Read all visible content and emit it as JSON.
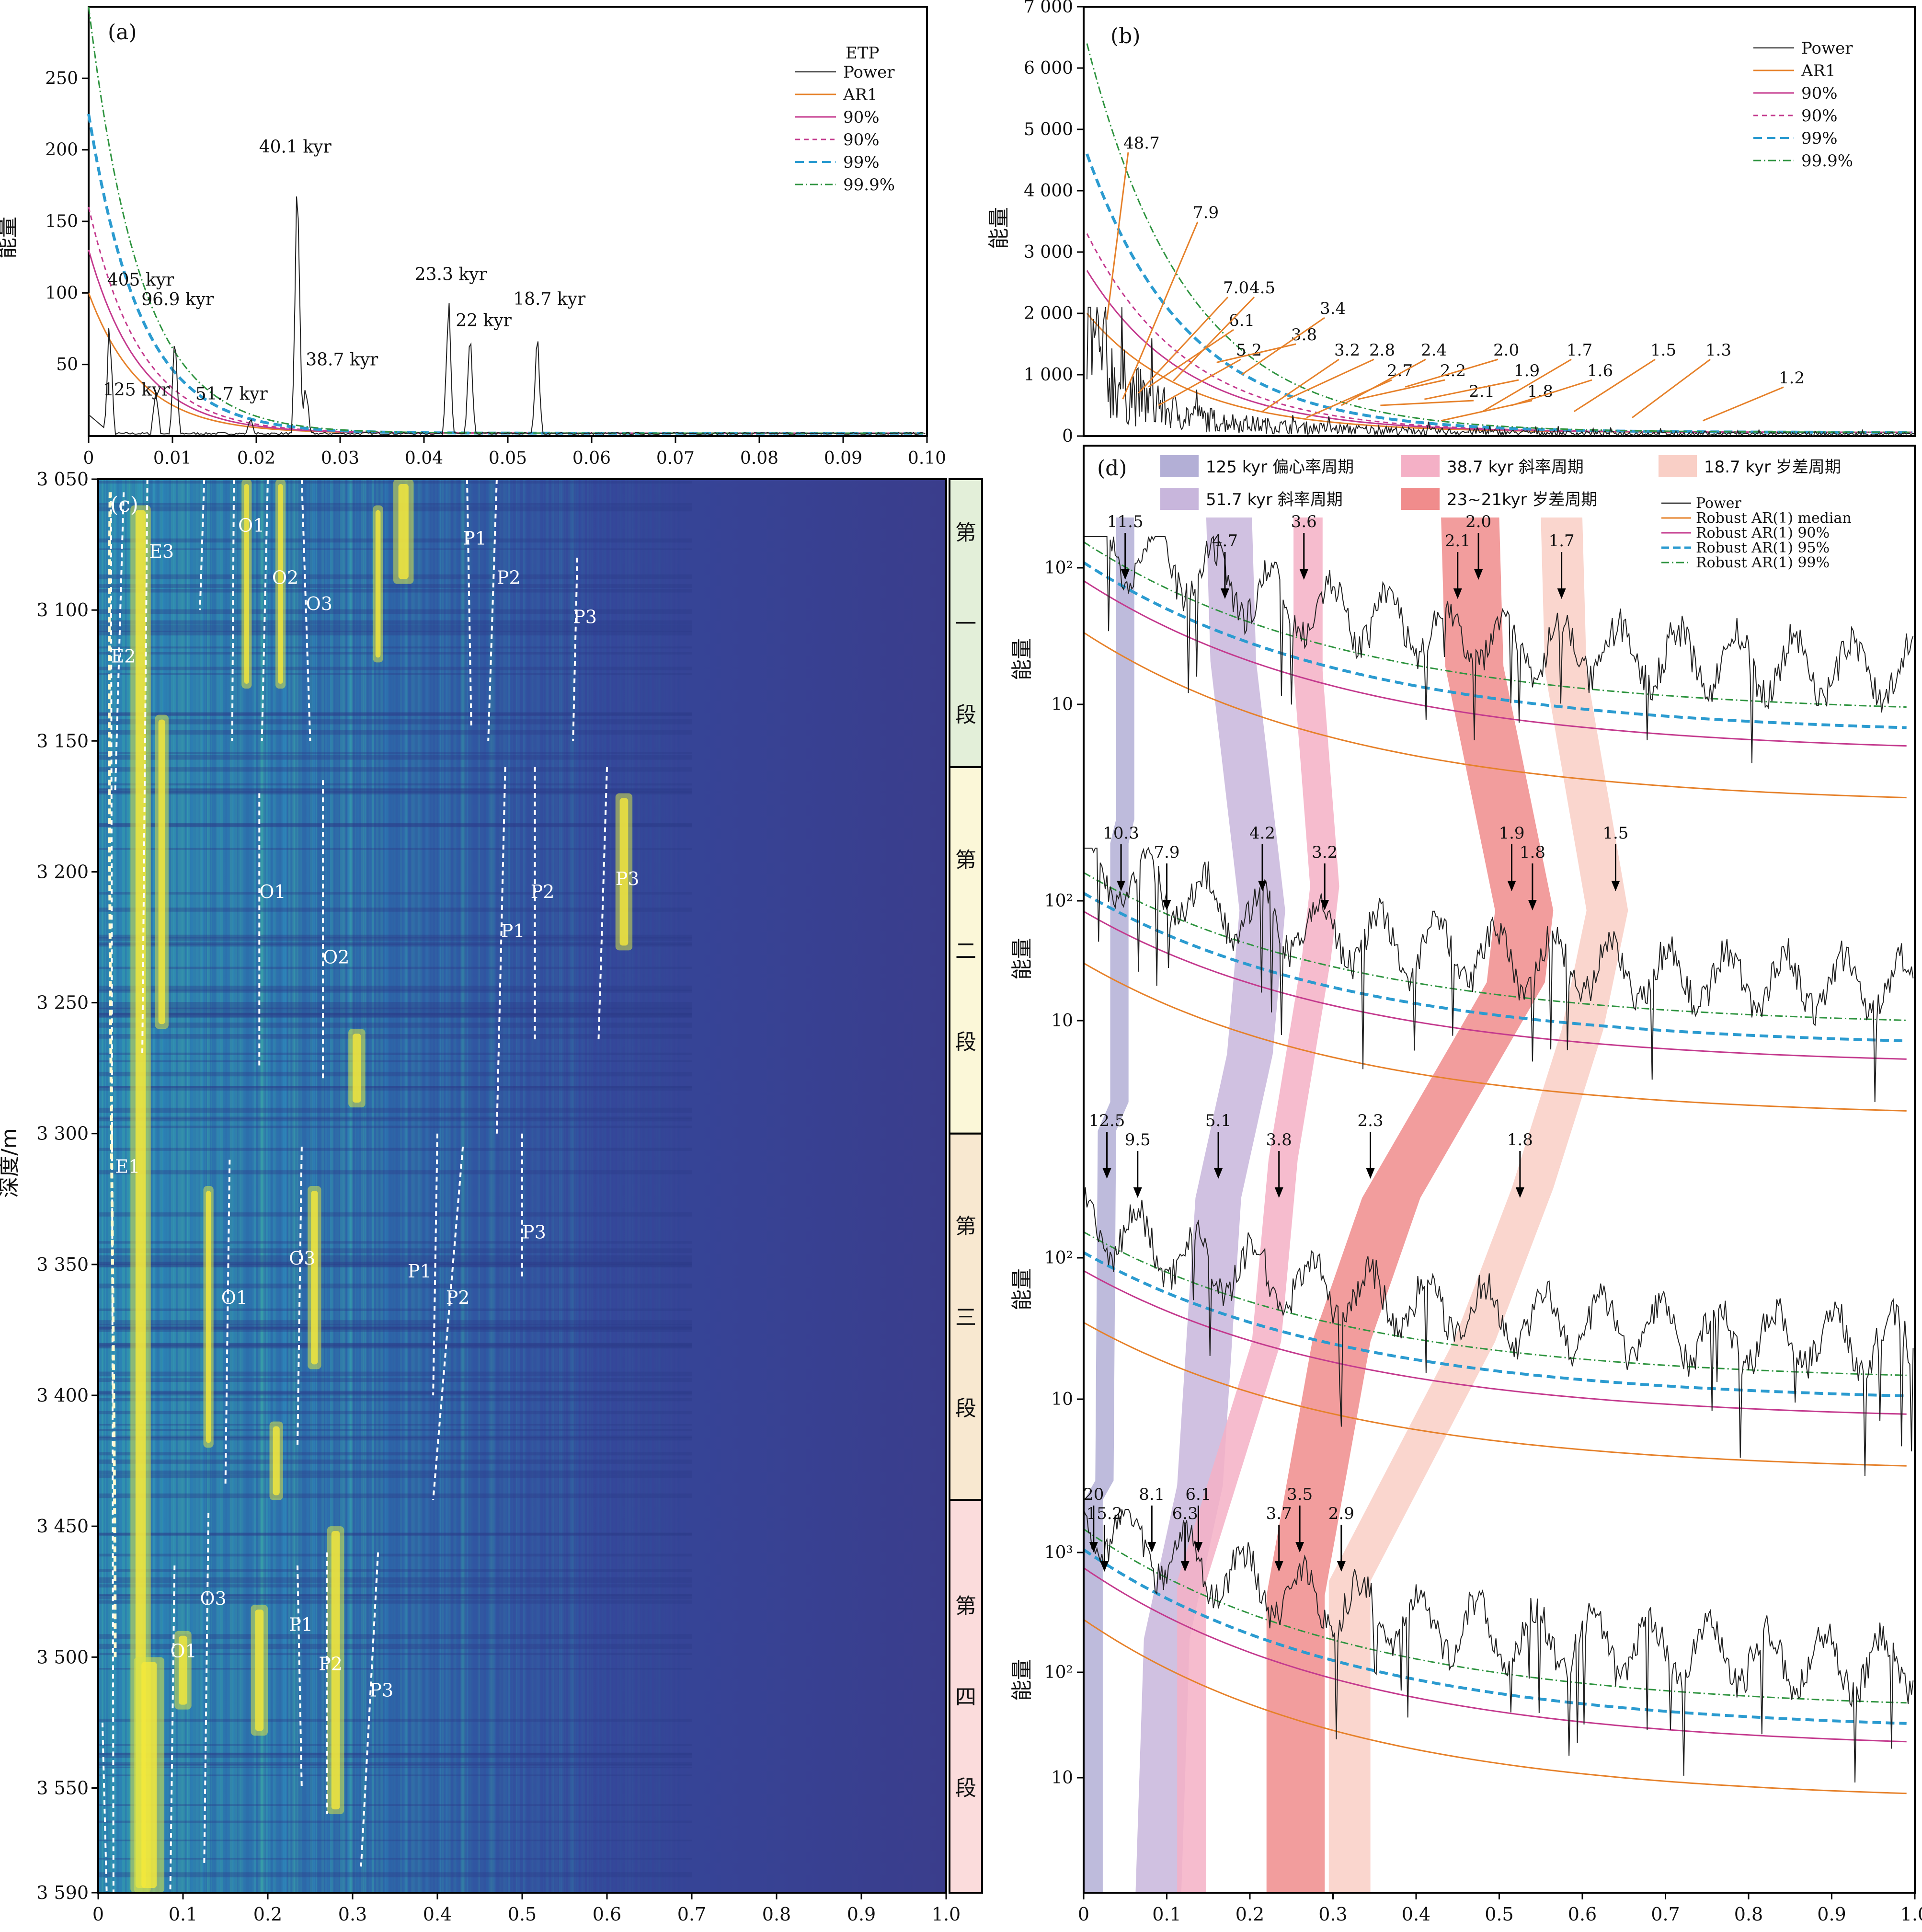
{
  "chart_data": [
    {
      "panel": "(a)",
      "type": "line",
      "legend_title": "ETP",
      "legend": [
        "Power",
        "AR1",
        "90%",
        "90%",
        "99%",
        "99.9%"
      ],
      "ylabel": "能量",
      "xlim": [
        0,
        0.1
      ],
      "ylim": [
        0,
        300
      ],
      "xticks": [
        "0",
        "0.01",
        "0.02",
        "0.03",
        "0.04",
        "0.05",
        "0.06",
        "0.07",
        "0.08",
        "0.09",
        "0.10"
      ],
      "yticks": [
        "50",
        "100",
        "150",
        "200",
        "250"
      ],
      "peaks": [
        {
          "x": 0.0025,
          "y": 85,
          "label": "405 kyr"
        },
        {
          "x": 0.0103,
          "y": 68,
          "label": "96.9 kyr"
        },
        {
          "x": 0.008,
          "y": 35,
          "label": "125 kyr"
        },
        {
          "x": 0.0193,
          "y": 12,
          "label": "51.7 kyr"
        },
        {
          "x": 0.0249,
          "y": 188,
          "label": "40.1 kyr"
        },
        {
          "x": 0.0259,
          "y": 36,
          "label": "38.7 kyr"
        },
        {
          "x": 0.0429,
          "y": 99,
          "label": "23.3 kyr"
        },
        {
          "x": 0.0455,
          "y": 70,
          "label": "22 kyr"
        },
        {
          "x": 0.0535,
          "y": 75,
          "label": "18.7 kyr"
        }
      ]
    },
    {
      "panel": "(b)",
      "type": "line",
      "legend": [
        "Power",
        "AR1",
        "90%",
        "90%",
        "99%",
        "99.9%"
      ],
      "ylabel": "能量",
      "ylim": [
        0,
        7000
      ],
      "yticks": [
        "0",
        "1 000",
        "2 000",
        "3 000",
        "4 000",
        "5 000",
        "6 000",
        "7 000"
      ],
      "peak_labels": [
        "48.7",
        "7.9",
        "7.0",
        "6.1",
        "5.2",
        "4.5",
        "3.8",
        "3.4",
        "3.2",
        "2.8",
        "2.7",
        "2.4",
        "2.2",
        "2.1",
        "2.0",
        "1.9",
        "1.8",
        "1.7",
        "1.6",
        "1.5",
        "1.3",
        "1.2"
      ]
    },
    {
      "panel": "(c)",
      "type": "heatmap",
      "ylabel": "深度/m",
      "xlim": [
        0,
        1.0
      ],
      "ylim": [
        3050,
        3590
      ],
      "xticks": [
        "0",
        "0.1",
        "0.2",
        "0.3",
        "0.4",
        "0.5",
        "0.6",
        "0.7",
        "0.8",
        "0.9",
        "1.0"
      ],
      "yticks": [
        "3 050",
        "3 100",
        "3 150",
        "3 200",
        "3 250",
        "3 300",
        "3 350",
        "3 400",
        "3 450",
        "3 500",
        "3 550",
        "3 590"
      ],
      "segments": [
        "第一段",
        "第二段",
        "第三段",
        "第四段"
      ],
      "segment_bounds": [
        3050,
        3160,
        3300,
        3440,
        3590
      ],
      "track_labels": [
        "E1",
        "E2",
        "E3",
        "O1",
        "O2",
        "O3",
        "P1",
        "P2",
        "P3"
      ]
    },
    {
      "panel": "(d)",
      "type": "line",
      "legend": [
        "Power",
        "Robust AR(1) median",
        "Robust AR(1) 90%",
        "Robust AR(1) 95%",
        "Robust AR(1) 99%"
      ],
      "band_legend": [
        {
          "label": "125 kyr  偏心率周期",
          "color": "#b3afd6"
        },
        {
          "label": "51.7 kyr  斜率周期",
          "color": "#c8b6dc"
        },
        {
          "label": "38.7 kyr  斜率周期",
          "color": "#f4b0c6"
        },
        {
          "label": "23~21kyr  岁差周期",
          "color": "#f08c8c"
        },
        {
          "label": "18.7 kyr  岁差周期",
          "color": "#f9cfc6"
        }
      ],
      "ylabel": "能量",
      "xlim": [
        0,
        1.0
      ],
      "xticks": [
        "0",
        "0.1",
        "0.2",
        "0.3",
        "0.4",
        "0.5",
        "0.6",
        "0.7",
        "0.8",
        "0.9",
        "1.0"
      ],
      "subplots": [
        {
          "yticks": [
            "10",
            "10²"
          ],
          "peaks": [
            {
              "x": 0.05,
              "label": "11.5"
            },
            {
              "x": 0.17,
              "label": "4.7"
            },
            {
              "x": 0.265,
              "label": "3.6"
            },
            {
              "x": 0.45,
              "label": "2.1"
            },
            {
              "x": 0.475,
              "label": "2.0"
            },
            {
              "x": 0.575,
              "label": "1.7"
            }
          ]
        },
        {
          "yticks": [
            "10",
            "10²"
          ],
          "peaks": [
            {
              "x": 0.045,
              "label": "10.3"
            },
            {
              "x": 0.1,
              "label": "7.9"
            },
            {
              "x": 0.215,
              "label": "4.2"
            },
            {
              "x": 0.29,
              "label": "3.2"
            },
            {
              "x": 0.515,
              "label": "1.9"
            },
            {
              "x": 0.54,
              "label": "1.8"
            },
            {
              "x": 0.64,
              "label": "1.5"
            }
          ]
        },
        {
          "yticks": [
            "10",
            "10²"
          ],
          "peaks": [
            {
              "x": 0.028,
              "label": "12.5"
            },
            {
              "x": 0.065,
              "label": "9.5"
            },
            {
              "x": 0.162,
              "label": "5.1"
            },
            {
              "x": 0.235,
              "label": "3.8"
            },
            {
              "x": 0.345,
              "label": "2.3"
            },
            {
              "x": 0.525,
              "label": "1.8"
            }
          ]
        },
        {
          "yticks": [
            "10",
            "10²",
            "10³"
          ],
          "peaks": [
            {
              "x": 0.012,
              "label": "20"
            },
            {
              "x": 0.025,
              "label": "15.2"
            },
            {
              "x": 0.082,
              "label": "8.1"
            },
            {
              "x": 0.122,
              "label": "6.3"
            },
            {
              "x": 0.138,
              "label": "6.1"
            },
            {
              "x": 0.235,
              "label": "3.7"
            },
            {
              "x": 0.26,
              "label": "3.5"
            },
            {
              "x": 0.31,
              "label": "2.9"
            }
          ]
        }
      ]
    }
  ]
}
